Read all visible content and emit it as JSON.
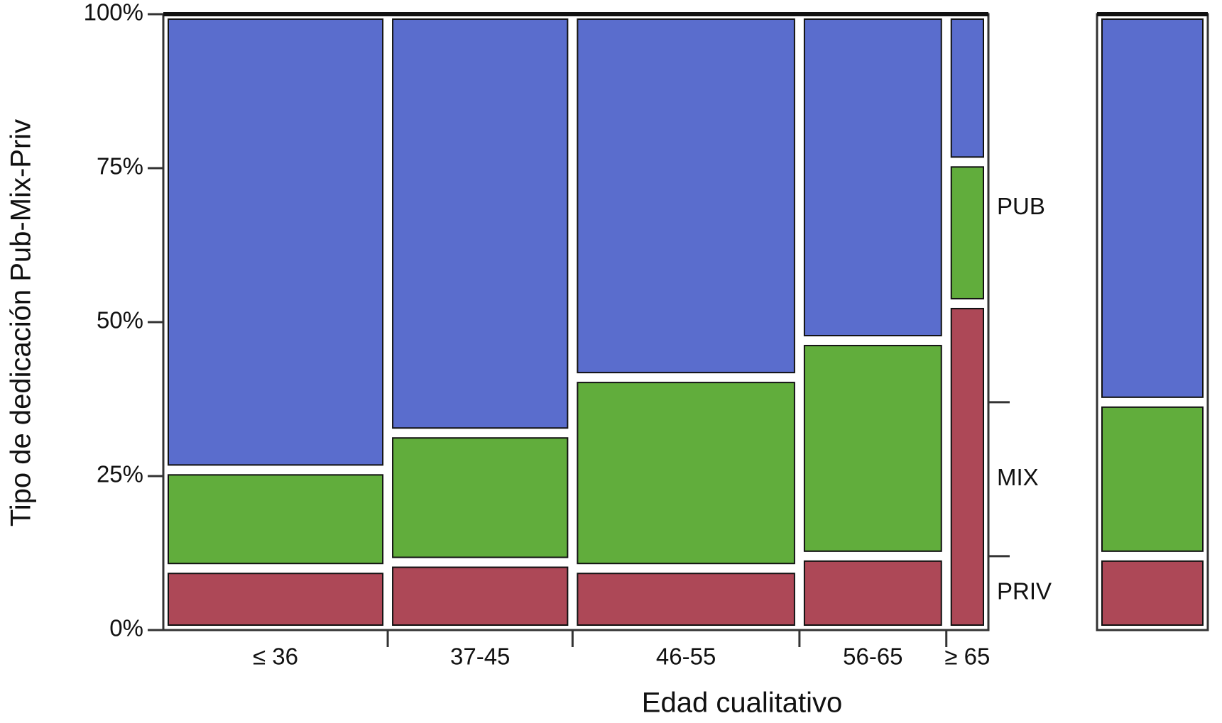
{
  "chart_data": {
    "type": "mosaic",
    "x_label": "Edad cualitativo",
    "y_label": "Tipo de dedicación Pub-Mix-Priv",
    "categories": [
      "≤ 36",
      "37-45",
      "46-55",
      "56-65",
      "≥ 65"
    ],
    "widths": [
      27.2,
      22.4,
      27.5,
      17.8,
      5.1
    ],
    "ylim": [
      0,
      100
    ],
    "yticks": [
      {
        "value": 0,
        "label": "0%"
      },
      {
        "value": 25,
        "label": "25%"
      },
      {
        "value": 50,
        "label": "50%"
      },
      {
        "value": 75,
        "label": "75%"
      },
      {
        "value": 100,
        "label": "100%"
      }
    ],
    "series": [
      {
        "name": "PRIV",
        "color": "#ad4857",
        "values": [
          10,
          11,
          10,
          12,
          53
        ],
        "total": 12
      },
      {
        "name": "MIX",
        "color": "#61ad3c",
        "values": [
          16,
          21,
          31,
          35,
          23
        ],
        "total": 25
      },
      {
        "name": "PUB",
        "color": "#5a6dcd",
        "values": [
          74,
          68,
          59,
          53,
          24
        ],
        "total": 63
      }
    ]
  }
}
